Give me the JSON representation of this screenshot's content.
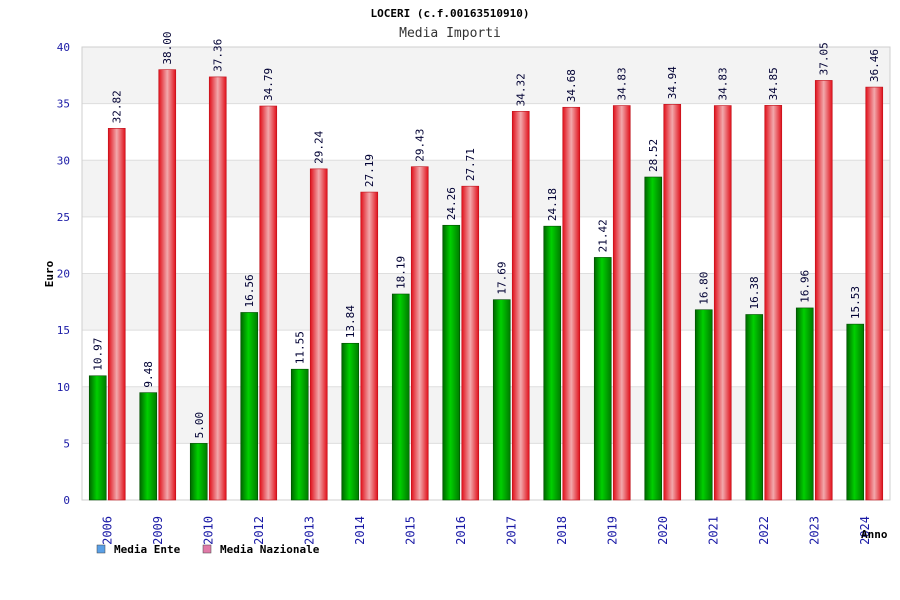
{
  "chart_data": {
    "type": "bar",
    "title": "LOCERI (c.f.00163510910)",
    "subtitle": "Media Importi",
    "xlabel": "Anno",
    "ylabel": "Euro",
    "ylim": [
      0,
      40
    ],
    "yticks": [
      0,
      5,
      10,
      15,
      20,
      25,
      30,
      35,
      40
    ],
    "grid": true,
    "legend_position": "bottom-left",
    "categories": [
      "2006",
      "2009",
      "2010",
      "2012",
      "2013",
      "2014",
      "2015",
      "2016",
      "2017",
      "2018",
      "2019",
      "2020",
      "2021",
      "2022",
      "2023",
      "2024"
    ],
    "series": [
      {
        "name": "Media Ente",
        "color": "#00c000",
        "legend_color": "#5aa0e6",
        "values": [
          10.97,
          9.48,
          5.0,
          16.56,
          11.55,
          13.84,
          18.19,
          24.26,
          17.69,
          24.18,
          21.42,
          28.52,
          16.8,
          16.38,
          16.96,
          15.53
        ],
        "labels": [
          "10.97",
          "9.48",
          "5.00",
          "16.56",
          "11.55",
          "13.84",
          "18.19",
          "24.26",
          "17.69",
          "24.18",
          "21.42",
          "28.52",
          "16.80",
          "16.38",
          "16.96",
          "15.53"
        ]
      },
      {
        "name": "Media Nazionale",
        "color": "#e8202a",
        "legend_color": "#e07aa8",
        "values": [
          32.82,
          38.0,
          37.36,
          34.79,
          29.24,
          27.19,
          29.43,
          27.71,
          34.32,
          34.68,
          34.83,
          34.94,
          34.83,
          34.85,
          37.05,
          36.46
        ],
        "labels": [
          "32.82",
          "38.00",
          "37.36",
          "34.79",
          "29.24",
          "27.19",
          "29.43",
          "27.71",
          "34.32",
          "34.68",
          "34.83",
          "34.94",
          "34.83",
          "34.85",
          "37.05",
          "36.46"
        ]
      }
    ]
  }
}
